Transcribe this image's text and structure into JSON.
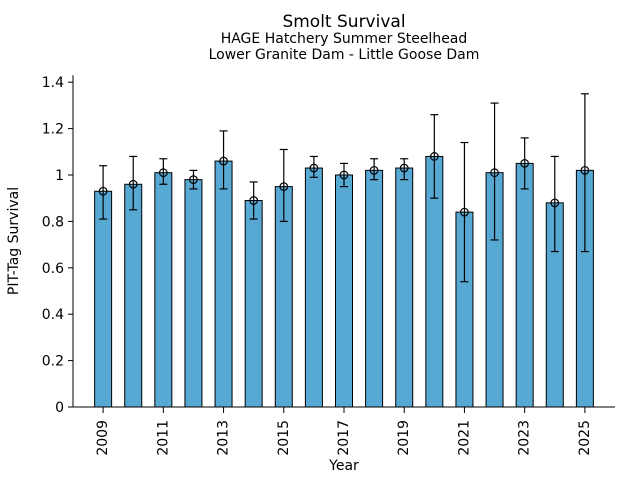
{
  "chart": {
    "title": "Smolt Survival",
    "subtitle1": "HAGE Hatchery Summer Steelhead",
    "subtitle2": "Lower Granite Dam - Little Goose Dam",
    "xlabel": "Year",
    "ylabel": "PIT-Tag Survival"
  },
  "chart_data": {
    "type": "bar",
    "title": "Smolt Survival",
    "subtitle1": "HAGE Hatchery Summer Steelhead",
    "subtitle2": "Lower Granite Dam - Little Goose Dam",
    "xlabel": "Year",
    "ylabel": "PIT-Tag Survival",
    "categories": [
      "2009",
      "2010",
      "2011",
      "2012",
      "2013",
      "2014",
      "2015",
      "2016",
      "2017",
      "2018",
      "2019",
      "2020",
      "2021",
      "2022",
      "2023",
      "2024",
      "2025"
    ],
    "values": [
      0.93,
      0.96,
      1.01,
      0.98,
      1.06,
      0.89,
      0.95,
      1.03,
      1.0,
      1.02,
      1.03,
      1.08,
      0.84,
      1.01,
      1.05,
      0.88,
      1.02
    ],
    "error_low": [
      0.81,
      0.85,
      0.96,
      0.94,
      0.94,
      0.81,
      0.8,
      0.99,
      0.95,
      0.98,
      0.98,
      0.9,
      0.54,
      0.72,
      0.94,
      0.67,
      0.67
    ],
    "error_high": [
      1.04,
      1.08,
      1.07,
      1.02,
      1.19,
      0.97,
      1.11,
      1.08,
      1.05,
      1.07,
      1.07,
      1.26,
      1.14,
      1.31,
      1.16,
      1.08,
      1.35
    ],
    "marker": "open-circle",
    "bar_color": "#58A8D4",
    "edge_color": "#000000",
    "ylim": [
      0,
      1.43
    ],
    "yticks": [
      0,
      0.2,
      0.4,
      0.6,
      0.8,
      1.0,
      1.2,
      1.4
    ],
    "ytick_labels": [
      "0",
      "0.2",
      "0.4",
      "0.6",
      "0.8",
      "1",
      "1.2",
      "1.4"
    ],
    "xtick_labels": [
      "2009",
      "2011",
      "2013",
      "2015",
      "2017",
      "2019",
      "2021",
      "2023",
      "2025"
    ],
    "grid": false,
    "legend": null
  }
}
